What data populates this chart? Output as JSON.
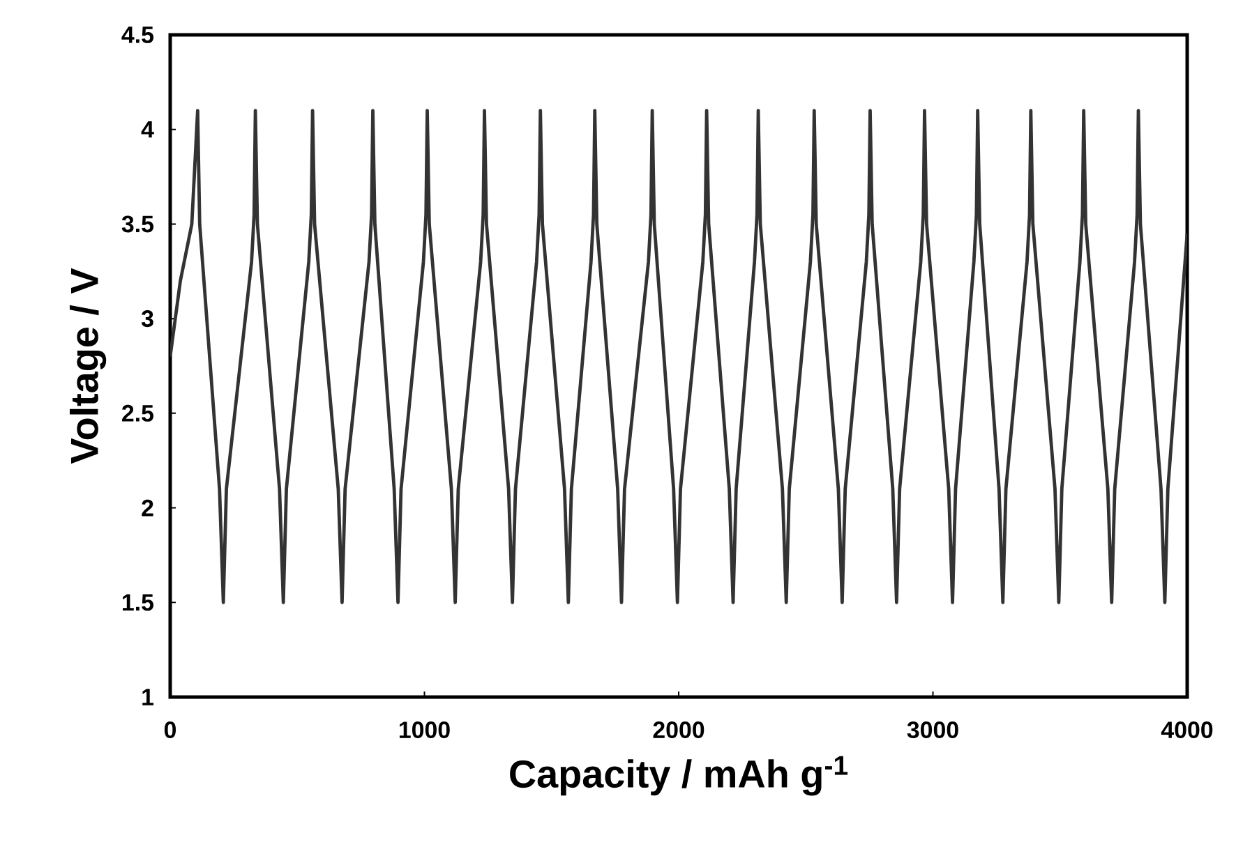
{
  "chart_data": {
    "type": "line",
    "xlabel": "Capacity / mAh g$^{-1}$",
    "ylabel": "Voltage / V",
    "xlim": [
      0,
      4000
    ],
    "ylim": [
      1,
      4.5
    ],
    "xticks": [
      0,
      1000,
      2000,
      3000,
      4000
    ],
    "yticks": [
      1,
      1.5,
      2,
      2.5,
      3,
      3.5,
      4,
      4.5
    ],
    "color": "#333333",
    "x": [
      0,
      40,
      85,
      108,
      116,
      194,
      209,
      221,
      320,
      330,
      335,
      343,
      430,
      445,
      457,
      545,
      555,
      560,
      568,
      661,
      676,
      688,
      782,
      792,
      797,
      805,
      881,
      896,
      908,
      996,
      1006,
      1011,
      1019,
      1106,
      1121,
      1133,
      1221,
      1231,
      1236,
      1244,
      1331,
      1346,
      1358,
      1441,
      1451,
      1456,
      1464,
      1551,
      1566,
      1578,
      1655,
      1665,
      1670,
      1678,
      1760,
      1775,
      1787,
      1881,
      1891,
      1896,
      1904,
      1980,
      1995,
      2007,
      2095,
      2105,
      2110,
      2118,
      2199,
      2214,
      2226,
      2298,
      2308,
      2313,
      2321,
      2408,
      2423,
      2435,
      2518,
      2528,
      2533,
      2541,
      2628,
      2643,
      2655,
      2738,
      2748,
      2753,
      2761,
      2842,
      2857,
      2869,
      2952,
      2962,
      2967,
      2975,
      3062,
      3077,
      3089,
      3161,
      3171,
      3176,
      3184,
      3260,
      3275,
      3287,
      3370,
      3380,
      3385,
      3393,
      3480,
      3495,
      3507,
      3578,
      3588,
      3593,
      3601,
      3688,
      3703,
      3715,
      3793,
      3803,
      3808,
      3816,
      3897,
      3912,
      3924,
      4000
    ],
    "values": [
      2.8,
      3.2,
      3.5,
      4.1,
      3.5,
      2.1,
      1.5,
      2.1,
      3.3,
      3.55,
      4.1,
      3.5,
      2.1,
      1.5,
      2.1,
      3.3,
      3.55,
      4.1,
      3.5,
      2.1,
      1.5,
      2.1,
      3.3,
      3.55,
      4.1,
      3.5,
      2.1,
      1.5,
      2.1,
      3.3,
      3.55,
      4.1,
      3.5,
      2.1,
      1.5,
      2.1,
      3.3,
      3.55,
      4.1,
      3.5,
      2.1,
      1.5,
      2.1,
      3.3,
      3.55,
      4.1,
      3.5,
      2.1,
      1.5,
      2.1,
      3.3,
      3.55,
      4.1,
      3.5,
      2.1,
      1.5,
      2.1,
      3.3,
      3.55,
      4.1,
      3.5,
      2.1,
      1.5,
      2.1,
      3.3,
      3.55,
      4.1,
      3.5,
      2.1,
      1.5,
      2.1,
      3.3,
      3.55,
      4.1,
      3.5,
      2.1,
      1.5,
      2.1,
      3.3,
      3.55,
      4.1,
      3.5,
      2.1,
      1.5,
      2.1,
      3.3,
      3.55,
      4.1,
      3.5,
      2.1,
      1.5,
      2.1,
      3.3,
      3.55,
      4.1,
      3.5,
      2.1,
      1.5,
      2.1,
      3.3,
      3.55,
      4.1,
      3.5,
      2.1,
      1.5,
      2.1,
      3.3,
      3.55,
      4.1,
      3.5,
      2.1,
      1.5,
      2.1,
      3.3,
      3.55,
      4.1,
      3.5,
      2.1,
      1.5,
      2.1,
      3.3,
      3.55,
      4.1,
      3.5,
      2.1,
      1.5,
      2.1,
      3.45
    ]
  }
}
